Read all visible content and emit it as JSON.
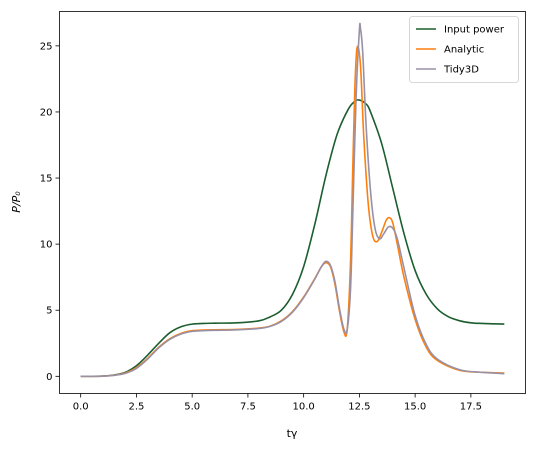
{
  "chart_data": {
    "type": "line",
    "xlabel": "tγ",
    "ylabel": "P/P₀",
    "xlim": [
      -0.95,
      19.95
    ],
    "ylim": [
      -1.3,
      27.6
    ],
    "xticks": [
      0.0,
      2.5,
      5.0,
      7.5,
      10.0,
      12.5,
      15.0,
      17.5
    ],
    "xtick_labels": [
      "0.0",
      "2.5",
      "5.0",
      "7.5",
      "10.0",
      "12.5",
      "15.0",
      "17.5"
    ],
    "yticks": [
      0,
      5,
      10,
      15,
      20,
      25
    ],
    "ytick_labels": [
      "0",
      "5",
      "10",
      "15",
      "20",
      "25"
    ],
    "grid": false,
    "legend_position": "top-right",
    "series": [
      {
        "name": "Input power",
        "color": "#1b5e2f",
        "x": [
          0,
          1,
          1.5,
          2,
          2.5,
          3,
          3.5,
          4,
          4.5,
          5,
          5.5,
          6,
          7,
          8,
          8.5,
          9,
          9.5,
          10,
          10.5,
          11,
          11.5,
          12,
          12.3,
          12.5,
          12.8,
          13,
          13.5,
          14,
          14.5,
          15,
          15.5,
          16,
          16.5,
          17,
          17.5,
          18,
          19
        ],
        "y": [
          0,
          0.02,
          0.1,
          0.3,
          0.8,
          1.6,
          2.5,
          3.3,
          3.75,
          3.95,
          4.0,
          4.02,
          4.05,
          4.2,
          4.5,
          5.0,
          6.2,
          8.3,
          11.5,
          15.2,
          18.3,
          20.2,
          20.8,
          20.9,
          20.6,
          20.0,
          17.6,
          14.2,
          10.8,
          8.0,
          6.2,
          5.1,
          4.5,
          4.2,
          4.05,
          4.0,
          3.95
        ]
      },
      {
        "name": "Analytic",
        "color": "#ff7f0e",
        "x": [
          0,
          1,
          1.5,
          2,
          2.5,
          3,
          3.5,
          4,
          4.5,
          5,
          5.5,
          6,
          7,
          8,
          8.5,
          9,
          9.5,
          10,
          10.5,
          10.8,
          11.0,
          11.2,
          11.4,
          11.6,
          11.8,
          11.95,
          12.1,
          12.2,
          12.3,
          12.4,
          12.55,
          12.7,
          12.9,
          13.1,
          13.3,
          13.5,
          13.7,
          13.85,
          14.0,
          14.2,
          14.5,
          15,
          15.5,
          16,
          17,
          18,
          19
        ],
        "y": [
          0,
          0.01,
          0.08,
          0.25,
          0.65,
          1.35,
          2.2,
          2.85,
          3.25,
          3.45,
          3.5,
          3.52,
          3.55,
          3.65,
          3.8,
          4.2,
          4.9,
          6.0,
          7.4,
          8.3,
          8.6,
          8.3,
          7.0,
          5.0,
          3.4,
          3.5,
          8.5,
          15.5,
          22.0,
          24.9,
          23.5,
          18.0,
          13.0,
          10.6,
          10.2,
          10.9,
          11.8,
          12.0,
          11.6,
          10.0,
          7.5,
          4.3,
          2.2,
          1.2,
          0.45,
          0.3,
          0.25
        ]
      },
      {
        "name": "Tidy3D",
        "color": "#9891a6",
        "x": [
          0,
          1,
          1.5,
          2,
          2.5,
          3,
          3.5,
          4,
          4.5,
          5,
          5.5,
          6,
          7,
          8,
          8.5,
          9,
          9.5,
          10,
          10.5,
          10.8,
          11.0,
          11.2,
          11.4,
          11.6,
          11.8,
          11.95,
          12.1,
          12.2,
          12.35,
          12.5,
          12.55,
          12.65,
          12.8,
          13.0,
          13.2,
          13.4,
          13.6,
          13.8,
          14.0,
          14.2,
          14.5,
          15,
          15.5,
          16,
          17,
          18,
          19
        ],
        "y": [
          0,
          0.01,
          0.07,
          0.22,
          0.6,
          1.3,
          2.15,
          2.8,
          3.2,
          3.4,
          3.45,
          3.48,
          3.52,
          3.62,
          3.78,
          4.15,
          4.85,
          5.95,
          7.35,
          8.3,
          8.7,
          8.4,
          7.2,
          5.2,
          3.6,
          3.5,
          6.5,
          12.0,
          21.0,
          26.2,
          26.3,
          24.5,
          19.0,
          14.0,
          11.2,
          10.4,
          10.8,
          11.3,
          11.2,
          10.4,
          8.2,
          4.6,
          2.4,
          1.3,
          0.5,
          0.3,
          0.2
        ]
      }
    ]
  }
}
